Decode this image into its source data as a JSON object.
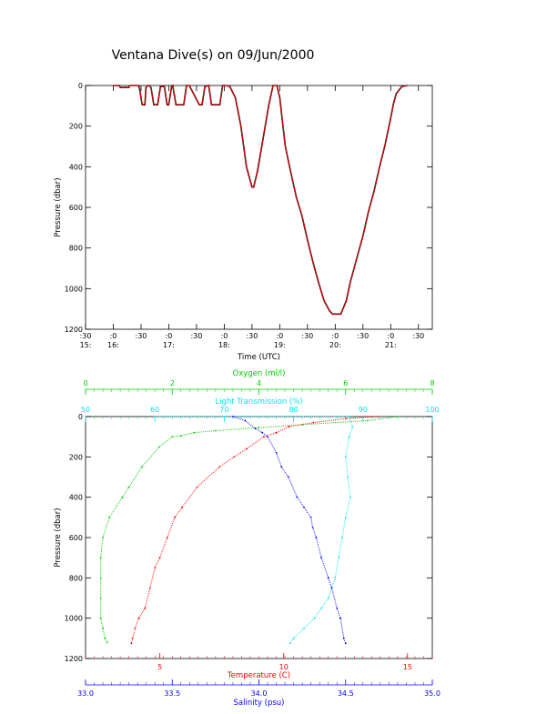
{
  "title": "Ventana Dive(s) on 09/Jun/2000",
  "colors": {
    "black": "#000000",
    "red": "#ff0000",
    "green": "#00cc00",
    "cyan": "#00e5ee",
    "blue": "#0000ff"
  },
  "chart_data": [
    {
      "type": "line",
      "xlabel": "Time (UTC)",
      "ylabel": "Pressure (dbar)",
      "xlim": [
        15.5,
        21.75
      ],
      "ylim": [
        1200,
        0
      ],
      "y_reversed": true,
      "yticks": [
        "0",
        "200",
        "400",
        "600",
        "800",
        "1000",
        "1200"
      ],
      "xticks": [
        {
          "x": 15.5,
          "minute": ":30",
          "hour": "15:"
        },
        {
          "x": 16.0,
          "minute": ":0",
          "hour": "16:"
        },
        {
          "x": 16.5,
          "minute": ":30",
          "hour": ""
        },
        {
          "x": 17.0,
          "minute": ":0",
          "hour": "17:"
        },
        {
          "x": 17.5,
          "minute": ":30",
          "hour": ""
        },
        {
          "x": 18.0,
          "minute": ":0",
          "hour": "18:"
        },
        {
          "x": 18.5,
          "minute": ":30",
          "hour": ""
        },
        {
          "x": 19.0,
          "minute": ":0",
          "hour": "19:"
        },
        {
          "x": 19.5,
          "minute": ":30",
          "hour": ""
        },
        {
          "x": 20.0,
          "minute": ":0",
          "hour": "20:"
        },
        {
          "x": 20.5,
          "minute": ":30",
          "hour": ""
        },
        {
          "x": 21.0,
          "minute": ":0",
          "hour": "21:"
        },
        {
          "x": 21.5,
          "minute": ":30",
          "hour": ""
        }
      ],
      "series": [
        {
          "color": "#ff0000",
          "x": [
            16.0,
            16.1,
            16.13,
            16.28,
            16.3,
            16.33,
            16.45,
            16.47,
            16.52,
            16.57,
            16.59,
            16.62,
            16.65,
            16.68,
            16.73,
            16.77,
            16.8,
            16.85,
            16.92,
            16.97,
            17.0,
            17.05,
            17.07,
            17.13,
            17.17,
            17.27,
            17.32,
            17.37,
            17.55,
            17.6,
            17.65,
            17.72,
            17.77,
            17.8,
            17.92,
            17.97,
            18.0,
            18.05,
            18.1,
            18.2,
            18.3,
            18.4,
            18.5,
            18.53,
            18.6,
            18.7,
            18.8,
            18.88,
            18.95,
            19.0,
            19.05,
            19.1,
            19.2,
            19.3,
            19.4,
            19.5,
            19.6,
            19.7,
            19.8,
            19.9,
            19.95,
            20.05,
            20.1,
            20.2,
            20.27,
            20.4,
            20.5,
            20.6,
            20.7,
            20.8,
            20.9,
            21.0,
            21.05,
            21.1,
            21.2,
            21.3
          ],
          "y": [
            0,
            0,
            10,
            10,
            0,
            0,
            0,
            10,
            95,
            95,
            10,
            0,
            0,
            10,
            95,
            95,
            95,
            5,
            5,
            95,
            95,
            5,
            0,
            95,
            95,
            95,
            0,
            0,
            95,
            95,
            5,
            0,
            95,
            95,
            95,
            0,
            0,
            0,
            5,
            60,
            200,
            400,
            500,
            500,
            420,
            260,
            100,
            0,
            0,
            60,
            180,
            300,
            430,
            550,
            640,
            760,
            870,
            970,
            1060,
            1110,
            1125,
            1125,
            1125,
            1060,
            970,
            840,
            740,
            620,
            520,
            400,
            290,
            160,
            90,
            40,
            5,
            0
          ]
        }
      ]
    },
    {
      "type": "scatter",
      "xlabel": "Temperature (C)",
      "ylabel": "Pressure (dbar)",
      "ylim": [
        1200,
        0
      ],
      "y_reversed": true,
      "yticks": [
        "0",
        "200",
        "400",
        "600",
        "800",
        "1000",
        "1200"
      ],
      "axes": [
        {
          "label": "Oxygen (ml/l)",
          "position": "top",
          "color": "#00cc00",
          "range": [
            0,
            8
          ],
          "ticks": [
            "0",
            "2",
            "4",
            "6",
            "8"
          ]
        },
        {
          "label": "Light Transmission (%)",
          "position": "top",
          "color": "#00e5ee",
          "range": [
            50,
            100
          ],
          "ticks": [
            "50",
            "60",
            "70",
            "80",
            "90",
            "100"
          ]
        },
        {
          "label": "Temperature (C)",
          "position": "bottom",
          "color": "#ff0000",
          "range": [
            2,
            16
          ],
          "ticks": [
            "5",
            "10",
            "15"
          ]
        },
        {
          "label": "Salinity (psu)",
          "position": "bottom",
          "color": "#0000ff",
          "range": [
            33.0,
            35.0
          ],
          "ticks": [
            "33.0",
            "33.5",
            "34.0",
            "34.5",
            "35.0"
          ]
        }
      ],
      "series": [
        {
          "color": "#00cc00",
          "axis": "Oxygen (ml/l)",
          "x": [
            7.2,
            6.5,
            5.0,
            4.0,
            3.0,
            2.5,
            2.2,
            2.0,
            1.7,
            1.3,
            1.0,
            0.85,
            0.55,
            0.4,
            0.35,
            0.35,
            0.35,
            0.35,
            0.4,
            0.45,
            0.5
          ],
          "y": [
            0,
            20,
            40,
            55,
            70,
            80,
            95,
            100,
            150,
            250,
            350,
            400,
            500,
            600,
            700,
            800,
            900,
            1000,
            1050,
            1100,
            1120
          ]
        },
        {
          "color": "#00e5ee",
          "axis": "Light Transmission (%)",
          "x": [
            60,
            70,
            80,
            86,
            88,
            88.5,
            88.0,
            87.5,
            87.8,
            88.2,
            87.5,
            87.0,
            86.5,
            86.0,
            85.5,
            85.0,
            84.0,
            83.0,
            81.5,
            80.0,
            79.5
          ],
          "y": [
            0,
            0,
            0,
            0,
            0,
            50,
            100,
            200,
            300,
            400,
            500,
            600,
            700,
            800,
            850,
            900,
            950,
            1000,
            1050,
            1100,
            1125
          ]
        },
        {
          "color": "#ff0000",
          "axis": "Temperature (C)",
          "x": [
            13.8,
            12.5,
            11.2,
            10.2,
            9.7,
            9.2,
            8.5,
            8.0,
            7.4,
            6.5,
            5.9,
            5.6,
            5.3,
            5.0,
            4.8,
            4.6,
            4.4,
            4.15,
            4.0,
            3.9,
            3.85
          ],
          "y": [
            0,
            10,
            30,
            50,
            80,
            100,
            160,
            200,
            250,
            350,
            450,
            500,
            600,
            700,
            750,
            850,
            950,
            1000,
            1050,
            1100,
            1125
          ]
        },
        {
          "color": "#0000ff",
          "axis": "Salinity (psu)",
          "x": [
            33.85,
            33.92,
            33.98,
            34.02,
            34.05,
            34.1,
            34.13,
            34.17,
            34.22,
            34.26,
            34.3,
            34.31,
            34.33,
            34.36,
            34.4,
            34.42,
            34.45,
            34.47,
            34.49,
            34.5
          ],
          "y": [
            0,
            20,
            60,
            80,
            100,
            180,
            250,
            300,
            400,
            450,
            500,
            550,
            600,
            700,
            800,
            850,
            950,
            1000,
            1100,
            1125
          ]
        }
      ]
    }
  ]
}
